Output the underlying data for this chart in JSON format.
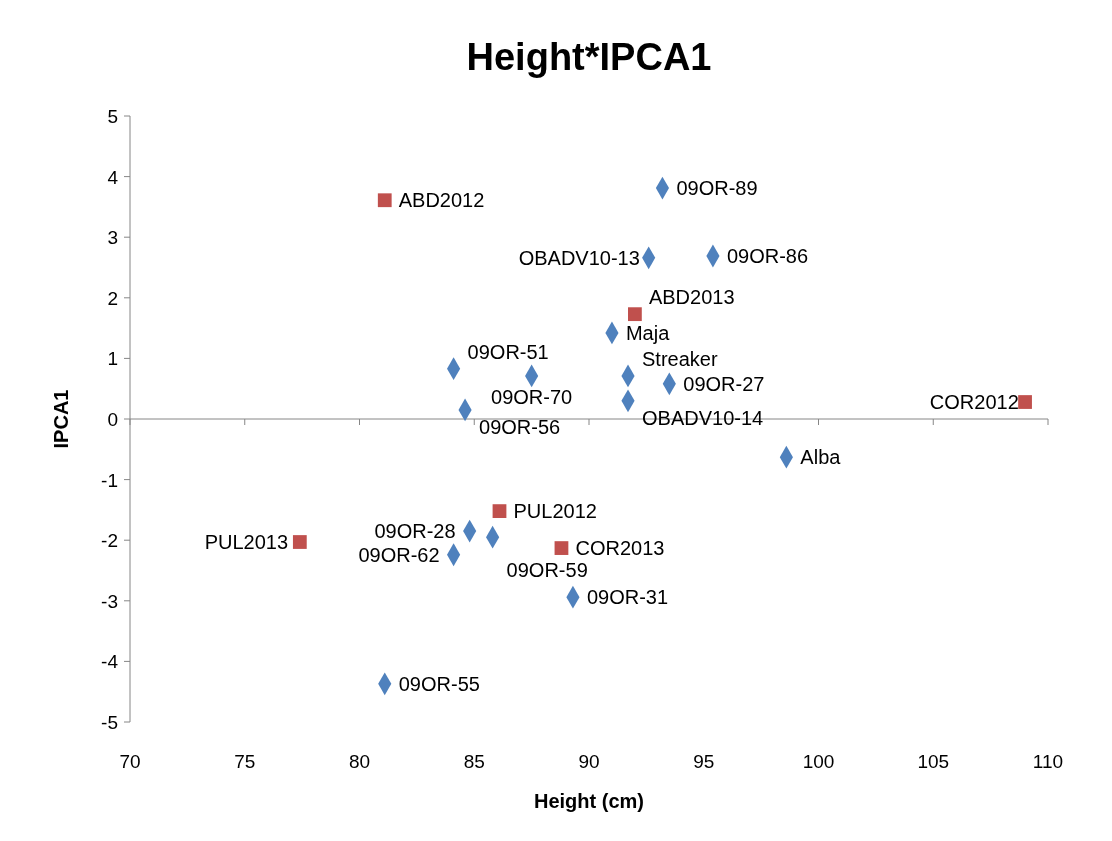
{
  "chart_data": {
    "type": "scatter",
    "title": "Height*IPCA1",
    "xlabel": "Height (cm)",
    "ylabel": "IPCA1",
    "xlim": [
      70,
      110
    ],
    "xticks": [
      70,
      75,
      80,
      85,
      90,
      95,
      100,
      105,
      110
    ],
    "ylim": [
      -5,
      5
    ],
    "yticks": [
      -5,
      -4,
      -3,
      -2,
      -1,
      0,
      1,
      2,
      3,
      4,
      5
    ],
    "series": [
      {
        "color": "#4f81bd",
        "marker": "diamond",
        "x": [
          93.2,
          95.4,
          92.6,
          91.0,
          84.1,
          87.5,
          91.7,
          93.5,
          91.7,
          84.6,
          98.6,
          84.8,
          85.8,
          84.1,
          89.3,
          81.1
        ],
        "values": [
          3.81,
          2.69,
          2.66,
          1.42,
          0.83,
          0.71,
          0.71,
          0.58,
          0.3,
          0.15,
          -0.63,
          -1.85,
          -1.95,
          -2.24,
          -2.94,
          -4.37
        ]
      },
      {
        "color": "#c0504d",
        "marker": "square",
        "x": [
          81.1,
          92.0,
          109.0,
          86.1,
          77.4,
          88.8
        ],
        "values": [
          3.61,
          1.73,
          0.28,
          -1.52,
          -2.03,
          -2.13
        ]
      }
    ],
    "annotations": [
      {
        "text": "09OR-89",
        "x": 93.2,
        "y": 3.81
      },
      {
        "text": "09OR-86",
        "x": 95.4,
        "y": 2.69
      },
      {
        "text": "OBADV10-13",
        "x": 92.6,
        "y": 2.66
      },
      {
        "text": "Maja",
        "x": 91.0,
        "y": 1.42
      },
      {
        "text": "09OR-51",
        "x": 84.1,
        "y": 0.83
      },
      {
        "text": "09OR-70",
        "x": 87.5,
        "y": 0.71
      },
      {
        "text": "Streaker",
        "x": 91.7,
        "y": 0.71
      },
      {
        "text": "09OR-27",
        "x": 93.5,
        "y": 0.58
      },
      {
        "text": "OBADV10-14",
        "x": 91.7,
        "y": 0.3
      },
      {
        "text": "09OR-56",
        "x": 84.6,
        "y": 0.15
      },
      {
        "text": "Alba",
        "x": 98.6,
        "y": -0.63
      },
      {
        "text": "09OR-28",
        "x": 84.8,
        "y": -1.85
      },
      {
        "text": "09OR-59",
        "x": 85.8,
        "y": -1.95
      },
      {
        "text": "09OR-62",
        "x": 84.1,
        "y": -2.24
      },
      {
        "text": "09OR-31",
        "x": 89.3,
        "y": -2.94
      },
      {
        "text": "09OR-55",
        "x": 81.1,
        "y": -4.37
      },
      {
        "text": "ABD2012",
        "x": 81.1,
        "y": 3.61
      },
      {
        "text": "ABD2013",
        "x": 92.0,
        "y": 1.73
      },
      {
        "text": "COR2012",
        "x": 109.0,
        "y": 0.28
      },
      {
        "text": "PUL2012",
        "x": 86.1,
        "y": -1.52
      },
      {
        "text": "PUL2013",
        "x": 77.4,
        "y": -2.03
      },
      {
        "text": "COR2013",
        "x": 88.8,
        "y": -2.13
      }
    ]
  }
}
